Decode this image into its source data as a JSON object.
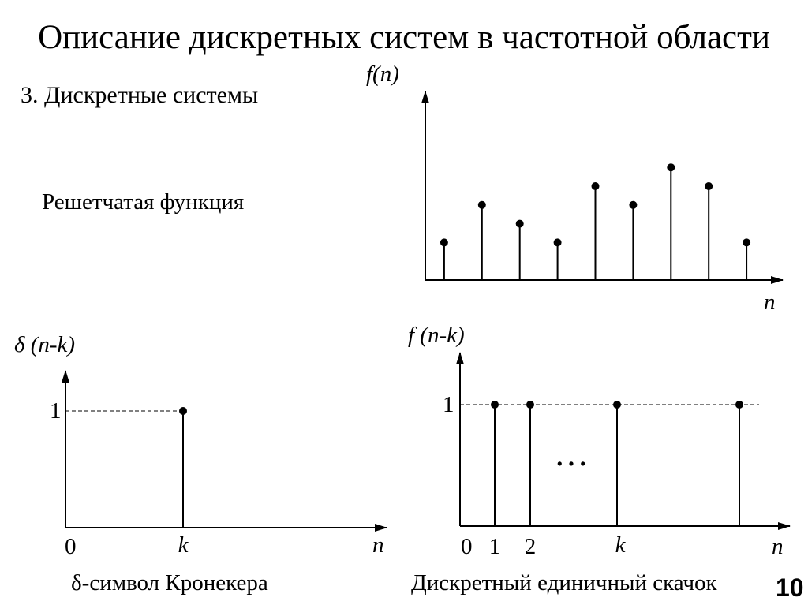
{
  "slide": {
    "title": "Описание дискретных систем в частотной области",
    "subtitle": "3. Дискретные системы",
    "lattice_label": "Решетчатая функция",
    "kronecker_caption": "δ-символ Кронекера",
    "step_caption": "Дискретный единичный скачок",
    "page_number": "10"
  },
  "chart_data": [
    {
      "type": "stem",
      "ylabel": "f(n)",
      "xlabel": "n",
      "x": [
        1,
        2,
        3,
        4,
        5,
        6,
        7,
        8,
        9
      ],
      "values": [
        2,
        4,
        3,
        2,
        5,
        4,
        6,
        5,
        2
      ],
      "ylim": [
        0,
        10
      ]
    },
    {
      "type": "stem",
      "ylabel": "δ (n-k)",
      "xlabel": "n",
      "x_tick_labels": [
        "0",
        "k"
      ],
      "y_tick_labels": [
        "1"
      ],
      "stems": [
        {
          "x": "k",
          "value": 1
        }
      ],
      "ylim": [
        0,
        1.3
      ]
    },
    {
      "type": "stem",
      "ylabel": "f (n-k)",
      "xlabel": "n",
      "x_tick_labels": [
        "0",
        "1",
        "2",
        "k"
      ],
      "y_tick_labels": [
        "1"
      ],
      "stems": [
        {
          "x": "1",
          "value": 1
        },
        {
          "x": "2",
          "value": 1
        },
        {
          "x": "k",
          "value": 1
        },
        {
          "x": "",
          "value": 1
        }
      ],
      "ellipsis": "…",
      "ylim": [
        0,
        1.3
      ]
    }
  ]
}
